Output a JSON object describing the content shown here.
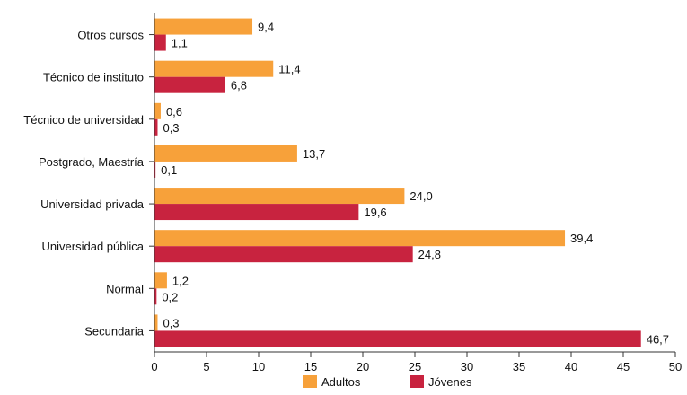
{
  "chart_data": {
    "type": "bar",
    "orientation": "horizontal",
    "categories": [
      "Otros cursos",
      "Técnico de instituto",
      "Técnico de universidad",
      "Postgrado, Maestría",
      "Universidad privada",
      "Universidad pública",
      "Normal",
      "Secundaria"
    ],
    "series": [
      {
        "name": "Adultos",
        "color": "#f7a13a",
        "values": [
          9.4,
          11.4,
          0.6,
          13.7,
          24.0,
          39.4,
          1.2,
          0.3
        ],
        "labels": [
          "9,4",
          "11,4",
          "0,6",
          "13,7",
          "24,0",
          "39,4",
          "1,2",
          "0,3"
        ]
      },
      {
        "name": "Jóvenes",
        "color": "#c8233f",
        "values": [
          1.1,
          6.8,
          0.3,
          0.1,
          19.6,
          24.8,
          0.2,
          46.7
        ],
        "labels": [
          "1,1",
          "6,8",
          "0,3",
          "0,1",
          "19,6",
          "24,8",
          "0,2",
          "46,7"
        ]
      }
    ],
    "xlim": [
      0,
      50
    ],
    "xticks": [
      "0",
      "5",
      "10",
      "15",
      "20",
      "25",
      "30",
      "35",
      "40",
      "45",
      "50"
    ],
    "grid": false,
    "legend_position": "bottom-center"
  }
}
